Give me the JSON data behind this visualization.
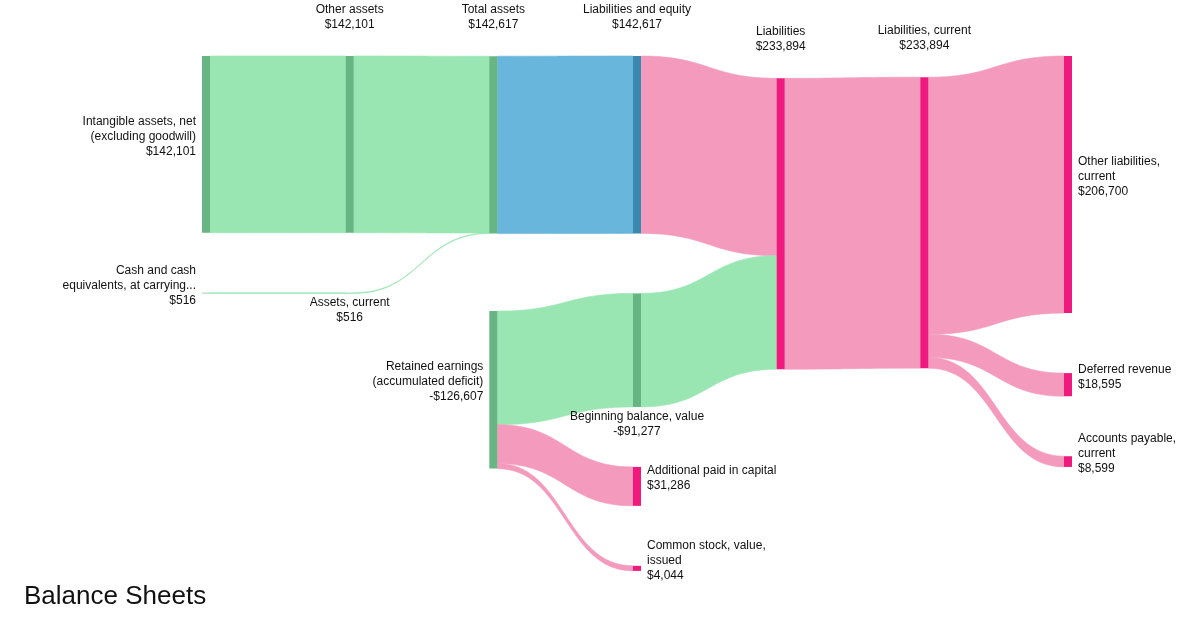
{
  "chart_data": {
    "type": "other",
    "subtitle": "Balance Sheets",
    "categories": [
      "Intangible assets, net (excluding goodwill)",
      "Cash and cash equivalents, at carrying...",
      "Other assets",
      "Assets, current",
      "Total assets",
      "Liabilities and equity",
      "Retained earnings (accumulated deficit)",
      "Beginning balance, value",
      "Liabilities",
      "Liabilities, current",
      "Additional paid in capital",
      "Common stock, value, issued",
      "Other liabilities, current",
      "Deferred revenue",
      "Accounts payable, current"
    ],
    "values": [
      142101,
      516,
      142101,
      516,
      142617,
      142617,
      -126607,
      -91277,
      233894,
      233894,
      31286,
      4044,
      206700,
      18595,
      8599
    ],
    "value_labels": [
      "$142,101",
      "$516",
      "$142,101",
      "$516",
      "$142,617",
      "$142,617",
      "-$126,607",
      "-$91,277",
      "$233,894",
      "$233,894",
      "$31,286",
      "$4,044",
      "$206,700",
      "$18,595",
      "$8,599"
    ],
    "colors": [
      "#66b583",
      "#66b583",
      "#66b583",
      "#66b583",
      "#66b583",
      "#3a87b0",
      "#66b583",
      "#66b583",
      "#f0197d",
      "#f0197d",
      "#f0197d",
      "#f0197d",
      "#f0197d",
      "#f0197d",
      "#f0197d"
    ],
    "series": [
      {
        "values": [
          null,
          null,
          null,
          null,
          null,
          null,
          null,
          null,
          null,
          null,
          null,
          null,
          null,
          null,
          null
        ],
        "colors": [
          null,
          null,
          "#99e6b3",
          null,
          null,
          null,
          null,
          null,
          null,
          null,
          null,
          null,
          null,
          null,
          null
        ]
      },
      {
        "values": [
          null,
          null,
          null,
          null,
          null,
          null,
          null,
          null,
          null,
          null,
          null,
          null,
          null,
          null,
          null
        ],
        "colors": [
          null,
          null,
          null,
          "#99e6b3",
          null,
          null,
          null,
          null,
          null,
          null,
          null,
          null,
          null,
          null,
          null
        ]
      },
      {
        "values": [
          null,
          null,
          null,
          null,
          null,
          null,
          null,
          null,
          null,
          null,
          null,
          null,
          null,
          null,
          null
        ],
        "colors": [
          null,
          null,
          null,
          null,
          "#99e6b3",
          null,
          null,
          null,
          null,
          null,
          null,
          null,
          null,
          null,
          null
        ]
      },
      {
        "values": [
          null,
          null,
          null,
          null,
          null,
          null,
          null,
          null,
          null,
          null,
          null,
          null,
          null,
          null,
          null
        ],
        "colors": [
          null,
          null,
          null,
          null,
          "#99e6b3",
          null,
          null,
          null,
          null,
          null,
          null,
          null,
          null,
          null,
          null
        ]
      },
      {
        "values": [
          null,
          null,
          null,
          null,
          null,
          null,
          null,
          null,
          null,
          null,
          null,
          null,
          null,
          null,
          null
        ],
        "colors": [
          null,
          null,
          null,
          null,
          null,
          "#69b6dc",
          null,
          null,
          null,
          null,
          null,
          null,
          null,
          null,
          null
        ]
      },
      {
        "values": [
          null,
          null,
          null,
          null,
          null,
          null,
          null,
          null,
          null,
          null,
          null,
          null,
          null,
          null,
          null
        ],
        "colors": [
          null,
          null,
          null,
          null,
          null,
          null,
          null,
          null,
          "#f39abd",
          null,
          null,
          null,
          null,
          null,
          null
        ]
      },
      {
        "values": [
          null,
          null,
          null,
          null,
          null,
          null,
          null,
          null,
          null,
          null,
          null,
          null,
          null,
          null,
          null
        ],
        "colors": [
          null,
          null,
          null,
          null,
          null,
          null,
          null,
          "#99e6b3",
          null,
          null,
          "#f39abd",
          "#f39abd",
          null,
          null,
          null
        ]
      },
      {
        "values": [
          null,
          null,
          null,
          null,
          null,
          null,
          null,
          null,
          null,
          null,
          null,
          null,
          null,
          null,
          null
        ],
        "colors": [
          null,
          null,
          null,
          null,
          null,
          null,
          null,
          null,
          "#99e6b3",
          null,
          null,
          null,
          null,
          null,
          null
        ]
      },
      {
        "values": [
          null,
          null,
          null,
          null,
          null,
          null,
          null,
          null,
          null,
          null,
          null,
          null,
          null,
          null,
          null
        ],
        "colors": [
          null,
          null,
          null,
          null,
          null,
          null,
          null,
          null,
          null,
          "#f39abd",
          null,
          null,
          null,
          null,
          null
        ]
      },
      {
        "values": [
          null,
          null,
          null,
          null,
          null,
          null,
          null,
          null,
          null,
          null,
          null,
          null,
          null,
          null,
          null
        ],
        "colors": [
          null,
          null,
          null,
          null,
          null,
          null,
          null,
          null,
          null,
          null,
          null,
          null,
          "#f39abd",
          "#f39abd",
          "#f39abd"
        ]
      }
    ]
  }
}
